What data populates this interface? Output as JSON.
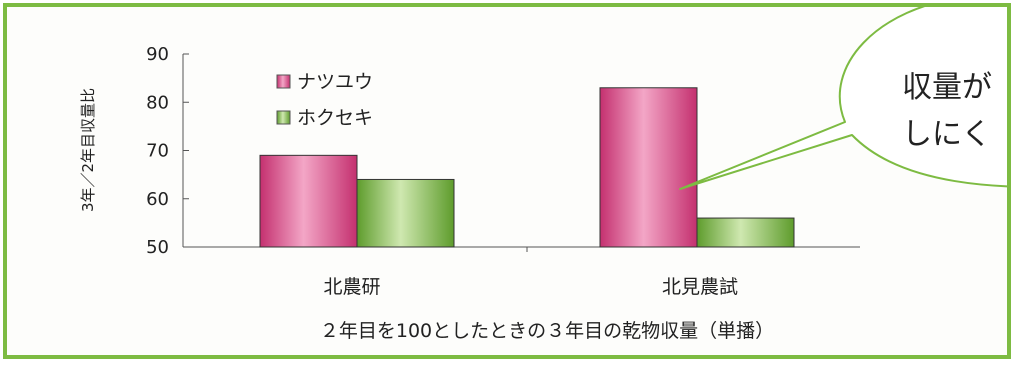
{
  "colors": {
    "frame": "#7dbb42",
    "natsuyu": "#d64d87",
    "hokuseki": "#7cb843",
    "callout_border": "#7dbb42",
    "axis": "#555555"
  },
  "callout": {
    "line1": "収量が",
    "line2": "しにく"
  },
  "chart_data": {
    "type": "bar",
    "ylabel": "3年／2年目収量比",
    "ylim": [
      50,
      90
    ],
    "yticks": [
      50,
      60,
      70,
      80,
      90
    ],
    "categories": [
      "北農研",
      "北見農試"
    ],
    "series": [
      {
        "name": "ナツユウ",
        "values": [
          69,
          83
        ]
      },
      {
        "name": "ホクセキ",
        "values": [
          64,
          56
        ]
      }
    ],
    "caption": "２年目を100としたときの３年目の乾物収量（単播）",
    "legend_position": "top-left",
    "grid": false
  }
}
